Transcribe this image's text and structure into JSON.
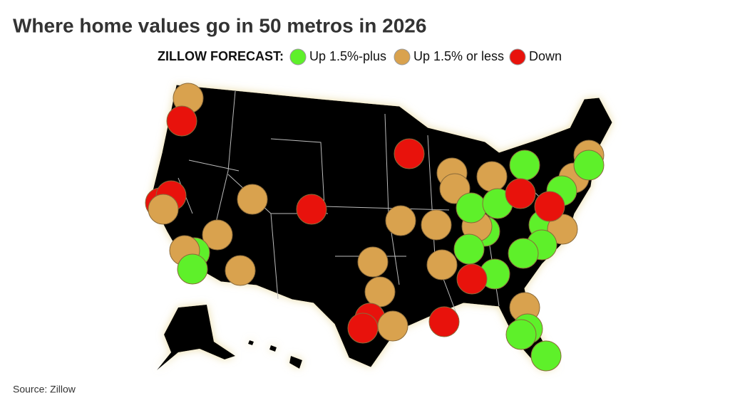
{
  "title": "Where home values go in 50 metros in 2026",
  "legend": {
    "label": "ZILLOW FORECAST:",
    "items": [
      {
        "name": "Up 1.5%-plus",
        "color": "#5ef02a"
      },
      {
        "name": "Up 1.5% or less",
        "color": "#d9a24e"
      },
      {
        "name": "Down",
        "color": "#e8120c"
      }
    ]
  },
  "source": "Source: Zillow"
}
